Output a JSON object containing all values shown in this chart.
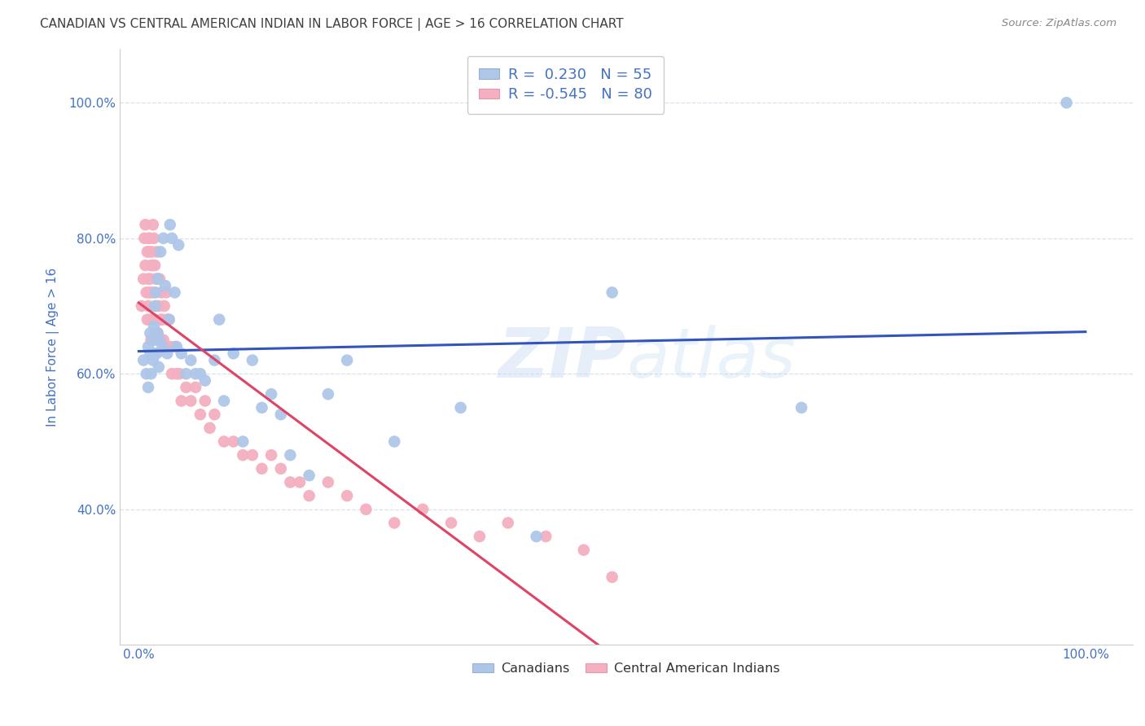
{
  "title": "CANADIAN VS CENTRAL AMERICAN INDIAN IN LABOR FORCE | AGE > 16 CORRELATION CHART",
  "source": "Source: ZipAtlas.com",
  "ylabel": "In Labor Force | Age > 16",
  "x_tick_positions": [
    0.0,
    0.5,
    1.0
  ],
  "x_tick_labels": [
    "0.0%",
    "",
    "100.0%"
  ],
  "y_tick_positions": [
    0.4,
    0.6,
    0.8,
    1.0
  ],
  "y_tick_labels": [
    "40.0%",
    "60.0%",
    "80.0%",
    "100.0%"
  ],
  "xlim": [
    -0.02,
    1.05
  ],
  "ylim": [
    0.2,
    1.08
  ],
  "canadians_color": "#aec6e8",
  "central_american_color": "#f4afc0",
  "blue_line_color": "#3355bb",
  "pink_line_color": "#dd4466",
  "dashed_line_color": "#ccbbcc",
  "legend_text_color": "#4472c4",
  "R_canadian": 0.23,
  "N_canadian": 55,
  "R_central": -0.545,
  "N_central": 80,
  "canadians_x": [
    0.005,
    0.008,
    0.01,
    0.01,
    0.012,
    0.012,
    0.013,
    0.015,
    0.015,
    0.016,
    0.016,
    0.017,
    0.018,
    0.018,
    0.019,
    0.02,
    0.02,
    0.021,
    0.022,
    0.023,
    0.025,
    0.026,
    0.028,
    0.03,
    0.032,
    0.033,
    0.035,
    0.038,
    0.04,
    0.042,
    0.045,
    0.05,
    0.055,
    0.06,
    0.065,
    0.07,
    0.08,
    0.085,
    0.09,
    0.1,
    0.11,
    0.12,
    0.13,
    0.14,
    0.15,
    0.16,
    0.18,
    0.2,
    0.22,
    0.27,
    0.34,
    0.42,
    0.5,
    0.7,
    0.98
  ],
  "canadians_y": [
    0.62,
    0.6,
    0.64,
    0.58,
    0.63,
    0.66,
    0.6,
    0.65,
    0.62,
    0.67,
    0.63,
    0.7,
    0.65,
    0.72,
    0.63,
    0.66,
    0.74,
    0.61,
    0.65,
    0.78,
    0.64,
    0.8,
    0.73,
    0.63,
    0.68,
    0.82,
    0.8,
    0.72,
    0.64,
    0.79,
    0.63,
    0.6,
    0.62,
    0.6,
    0.6,
    0.59,
    0.62,
    0.68,
    0.56,
    0.63,
    0.5,
    0.62,
    0.55,
    0.57,
    0.54,
    0.48,
    0.45,
    0.57,
    0.62,
    0.5,
    0.55,
    0.36,
    0.72,
    0.55,
    1.0
  ],
  "central_x": [
    0.003,
    0.005,
    0.006,
    0.007,
    0.007,
    0.008,
    0.009,
    0.009,
    0.01,
    0.01,
    0.01,
    0.011,
    0.011,
    0.012,
    0.012,
    0.012,
    0.013,
    0.013,
    0.013,
    0.014,
    0.014,
    0.015,
    0.015,
    0.015,
    0.016,
    0.016,
    0.017,
    0.017,
    0.018,
    0.018,
    0.019,
    0.019,
    0.02,
    0.02,
    0.021,
    0.022,
    0.023,
    0.024,
    0.025,
    0.026,
    0.027,
    0.028,
    0.029,
    0.03,
    0.031,
    0.032,
    0.033,
    0.035,
    0.038,
    0.04,
    0.043,
    0.045,
    0.05,
    0.055,
    0.06,
    0.065,
    0.07,
    0.075,
    0.08,
    0.09,
    0.1,
    0.11,
    0.12,
    0.13,
    0.14,
    0.15,
    0.16,
    0.17,
    0.18,
    0.2,
    0.22,
    0.24,
    0.27,
    0.3,
    0.33,
    0.36,
    0.39,
    0.43,
    0.47,
    0.5
  ],
  "central_y": [
    0.7,
    0.74,
    0.8,
    0.82,
    0.76,
    0.72,
    0.78,
    0.68,
    0.8,
    0.74,
    0.7,
    0.78,
    0.72,
    0.8,
    0.74,
    0.68,
    0.76,
    0.72,
    0.65,
    0.78,
    0.68,
    0.82,
    0.76,
    0.68,
    0.8,
    0.72,
    0.76,
    0.68,
    0.74,
    0.66,
    0.78,
    0.7,
    0.74,
    0.66,
    0.7,
    0.74,
    0.68,
    0.72,
    0.68,
    0.65,
    0.7,
    0.64,
    0.72,
    0.68,
    0.64,
    0.68,
    0.64,
    0.6,
    0.64,
    0.6,
    0.6,
    0.56,
    0.58,
    0.56,
    0.58,
    0.54,
    0.56,
    0.52,
    0.54,
    0.5,
    0.5,
    0.48,
    0.48,
    0.46,
    0.48,
    0.46,
    0.44,
    0.44,
    0.42,
    0.44,
    0.42,
    0.4,
    0.38,
    0.4,
    0.38,
    0.36,
    0.38,
    0.36,
    0.34,
    0.3
  ],
  "background_color": "#ffffff",
  "grid_color": "#d8e0ec",
  "title_color": "#404040",
  "axis_color": "#4472c4"
}
